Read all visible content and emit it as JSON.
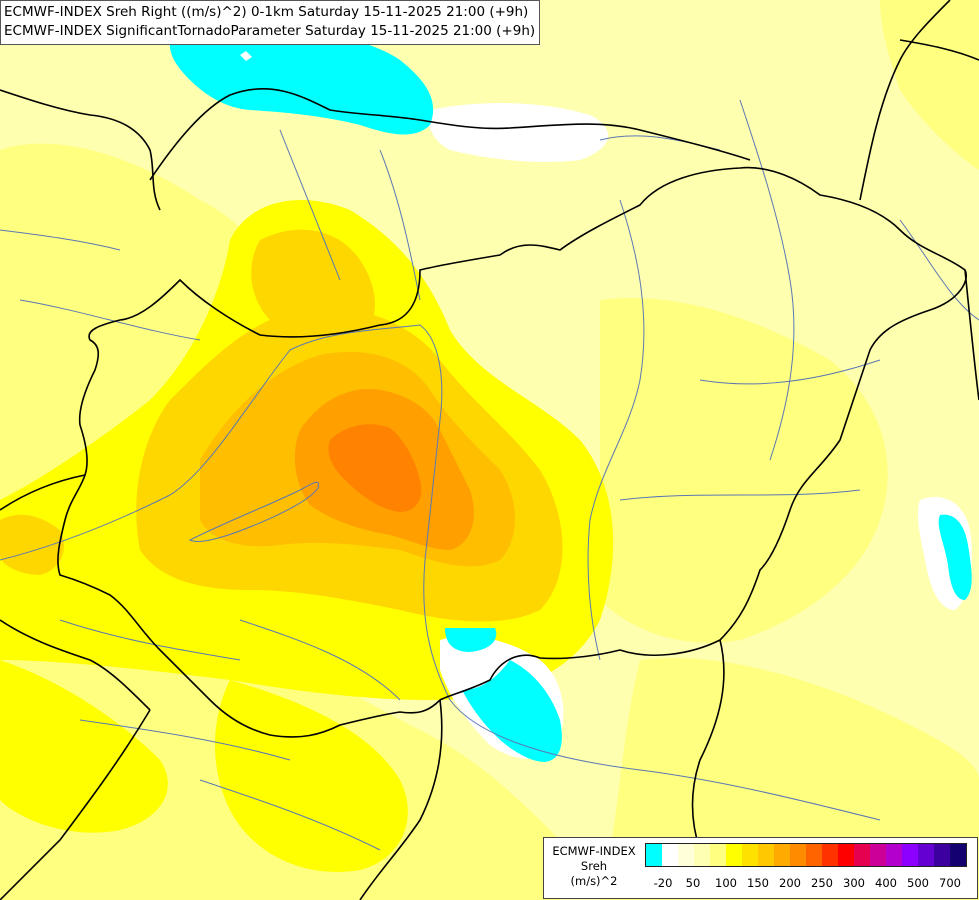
{
  "header": {
    "line1": "ECMWF-INDEX Sreh Right ((m/s)^2) 0-1km Saturday 15-11-2025 21:00 (+9h)",
    "line2": "ECMWF-INDEX SignificantTornadoParameter Saturday 15-11-2025 21:00 (+9h)"
  },
  "legend": {
    "title_line1": "ECMWF-INDEX",
    "title_line2": "Sreh",
    "title_line3": "(m/s)^2",
    "colors": [
      "#00ffff",
      "#ffffff",
      "#ffffd9",
      "#ffffb3",
      "#ffff80",
      "#ffff00",
      "#ffe100",
      "#ffc800",
      "#ffaa00",
      "#ff8c00",
      "#ff6400",
      "#ff3200",
      "#ff0000",
      "#e60050",
      "#cc0099",
      "#b400cc",
      "#8c00ff",
      "#6400d2",
      "#3c00a0",
      "#140070"
    ],
    "ticks": [
      "-20",
      "50",
      "100",
      "150",
      "200",
      "250",
      "300",
      "400",
      "500",
      "700"
    ]
  },
  "colors": {
    "cyan": "#00ffff",
    "pale": "#ffffb0",
    "yellow": "#ffff00",
    "gold": "#ffd700",
    "amber": "#ffbe00",
    "orange": "#ffa000",
    "deep_orange": "#ff8200",
    "border": "#000000",
    "river": "#5a78b4"
  }
}
